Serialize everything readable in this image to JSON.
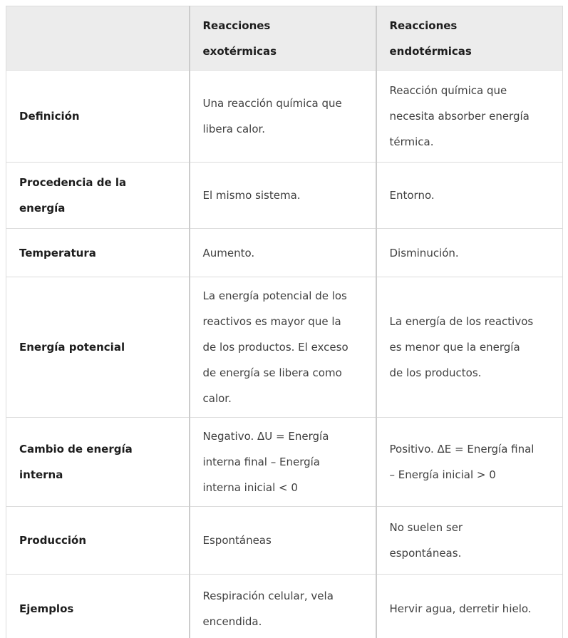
{
  "table": {
    "headers": [
      "",
      "Reacciones exotérmicas",
      "Reacciones endotérmicas"
    ],
    "rows": [
      {
        "label": "Definición",
        "exo": "Una reacción química que libera calor.",
        "endo": "Reacción química que necesita absorber energía térmica."
      },
      {
        "label": "Procedencia de la energía",
        "exo": "El mismo sistema.",
        "endo": "Entorno."
      },
      {
        "label": "Temperatura",
        "exo": "Aumento.",
        "endo": "Disminución."
      },
      {
        "label": "Energía potencial",
        "exo": "La energía potencial de los reactivos es mayor que la de los productos. El exceso de energía se libera como calor.",
        "endo": "La energía de los reactivos es menor que la energía de los productos."
      },
      {
        "label": "Cambio de energía interna",
        "exo": "Negativo. ΔU = Energía interna final – Energía interna inicial < 0",
        "endo": "Positivo. ΔE = Energía final – Energía inicial > 0"
      },
      {
        "label": "Producción",
        "exo": "Espontáneas",
        "endo": "No suelen ser espontáneas."
      },
      {
        "label": "Ejemplos",
        "exo": "Respiración celular, vela encendida.",
        "endo": "Hervir agua, derretir hielo."
      }
    ]
  },
  "colors": {
    "header_bg": "#ececec",
    "border_vertical": "#cccccc",
    "border_horizontal": "#dcdcdc",
    "label_text": "#1d1d1d",
    "body_text": "#3f3f3f"
  }
}
